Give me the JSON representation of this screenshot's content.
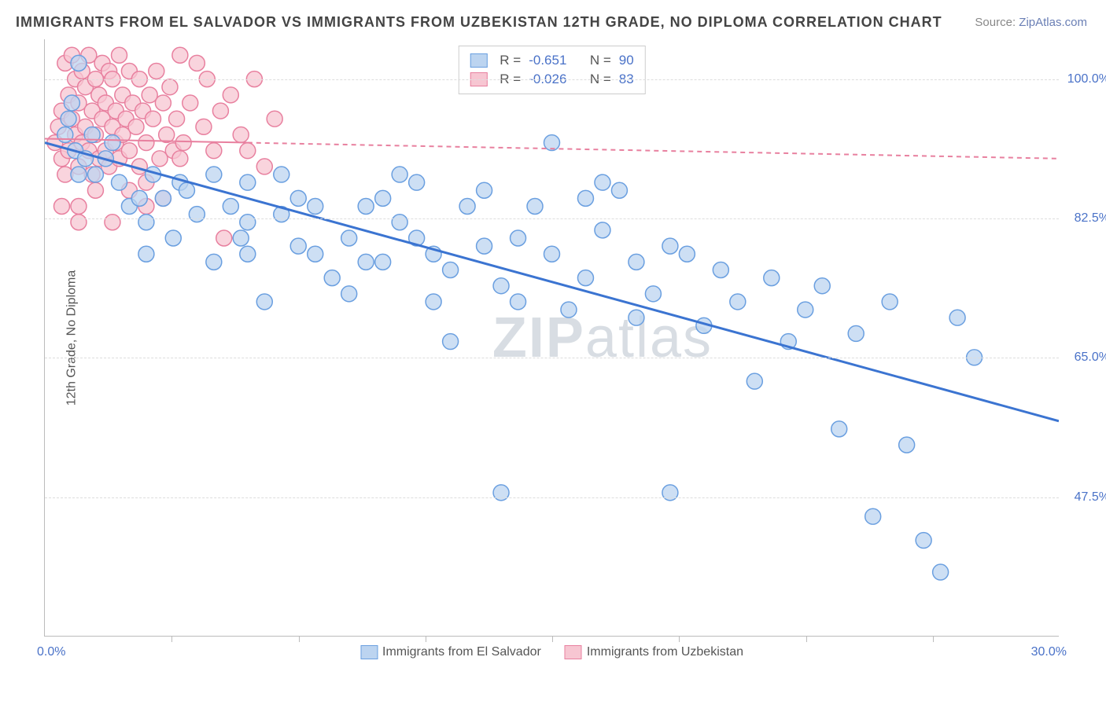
{
  "title": "IMMIGRANTS FROM EL SALVADOR VS IMMIGRANTS FROM UZBEKISTAN 12TH GRADE, NO DIPLOMA CORRELATION CHART",
  "source_label": "Source: ",
  "source_link": "ZipAtlas.com",
  "ylabel": "12th Grade, No Diploma",
  "watermark_bold": "ZIP",
  "watermark_rest": "atlas",
  "chart": {
    "type": "scatter",
    "xlim": [
      0,
      30
    ],
    "ylim": [
      30,
      105
    ],
    "x_axis_labels": {
      "min": "0.0%",
      "max": "30.0%"
    },
    "y_ticks": [
      {
        "v": 47.5,
        "label": "47.5%"
      },
      {
        "v": 65.0,
        "label": "65.0%"
      },
      {
        "v": 82.5,
        "label": "82.5%"
      },
      {
        "v": 100.0,
        "label": "100.0%"
      }
    ],
    "x_tick_positions": [
      3.75,
      7.5,
      11.25,
      15,
      18.75,
      22.5,
      26.25
    ],
    "background_color": "#ffffff",
    "grid_color": "#dddddd",
    "series": [
      {
        "name": "Immigrants from El Salvador",
        "color_fill": "#bcd4f0",
        "color_stroke": "#6a9fe0",
        "marker_radius": 10,
        "trend": {
          "x1": 0,
          "y1": 92,
          "x2": 30,
          "y2": 57,
          "color": "#3b74d1",
          "width": 3,
          "dash": "none"
        },
        "R": "-0.651",
        "N": "90",
        "points": [
          [
            1.0,
            102
          ],
          [
            0.8,
            97
          ],
          [
            0.6,
            93
          ],
          [
            0.9,
            91
          ],
          [
            1.2,
            90
          ],
          [
            1.0,
            88
          ],
          [
            1.4,
            93
          ],
          [
            0.7,
            95
          ],
          [
            1.5,
            88
          ],
          [
            1.8,
            90
          ],
          [
            2.0,
            92
          ],
          [
            2.5,
            84
          ],
          [
            2.2,
            87
          ],
          [
            2.8,
            85
          ],
          [
            3.0,
            82
          ],
          [
            3.2,
            88
          ],
          [
            3.5,
            85
          ],
          [
            3.0,
            78
          ],
          [
            3.8,
            80
          ],
          [
            4.0,
            87
          ],
          [
            4.5,
            83
          ],
          [
            4.2,
            86
          ],
          [
            5.0,
            88
          ],
          [
            5.5,
            84
          ],
          [
            5.0,
            77
          ],
          [
            5.8,
            80
          ],
          [
            6.0,
            87
          ],
          [
            6.0,
            78
          ],
          [
            6.5,
            72
          ],
          [
            7.0,
            88
          ],
          [
            7.0,
            83
          ],
          [
            7.5,
            79
          ],
          [
            8.0,
            84
          ],
          [
            8.5,
            75
          ],
          [
            9.0,
            80
          ],
          [
            9.0,
            73
          ],
          [
            9.5,
            77
          ],
          [
            10.0,
            85
          ],
          [
            10.5,
            82
          ],
          [
            10.5,
            88
          ],
          [
            11.0,
            87
          ],
          [
            11.5,
            72
          ],
          [
            11.5,
            78
          ],
          [
            12.0,
            76
          ],
          [
            12.0,
            67
          ],
          [
            12.5,
            84
          ],
          [
            13.0,
            86
          ],
          [
            13.5,
            74
          ],
          [
            13.5,
            48
          ],
          [
            14.0,
            80
          ],
          [
            14.0,
            72
          ],
          [
            14.5,
            84
          ],
          [
            15.0,
            78
          ],
          [
            15.0,
            92
          ],
          [
            15.5,
            71
          ],
          [
            16.0,
            75
          ],
          [
            16.0,
            85
          ],
          [
            16.5,
            81
          ],
          [
            17.0,
            86
          ],
          [
            17.5,
            77
          ],
          [
            17.5,
            70
          ],
          [
            18.0,
            73
          ],
          [
            18.5,
            79
          ],
          [
            18.5,
            48
          ],
          [
            19.0,
            78
          ],
          [
            19.5,
            69
          ],
          [
            20.0,
            76
          ],
          [
            20.5,
            72
          ],
          [
            21.0,
            62
          ],
          [
            21.5,
            75
          ],
          [
            22.0,
            67
          ],
          [
            22.5,
            71
          ],
          [
            23.0,
            74
          ],
          [
            23.5,
            56
          ],
          [
            24.0,
            68
          ],
          [
            24.5,
            45
          ],
          [
            25.0,
            72
          ],
          [
            25.5,
            54
          ],
          [
            26.0,
            42
          ],
          [
            26.5,
            38
          ],
          [
            27.0,
            70
          ],
          [
            27.5,
            65
          ],
          [
            6.0,
            82
          ],
          [
            7.5,
            85
          ],
          [
            8.0,
            78
          ],
          [
            9.5,
            84
          ],
          [
            10.0,
            77
          ],
          [
            11.0,
            80
          ],
          [
            13.0,
            79
          ],
          [
            16.5,
            87
          ]
        ]
      },
      {
        "name": "Immigrants from Uzbekistan",
        "color_fill": "#f7c6d2",
        "color_stroke": "#e8809f",
        "marker_radius": 10,
        "trend": {
          "x1": 0,
          "y1": 92.5,
          "x2": 30,
          "y2": 90,
          "color": "#e8809f",
          "width": 2,
          "dash": "6,5",
          "solid_until": 6
        },
        "R": "-0.026",
        "N": "83",
        "points": [
          [
            0.3,
            92
          ],
          [
            0.4,
            94
          ],
          [
            0.5,
            96
          ],
          [
            0.5,
            90
          ],
          [
            0.6,
            102
          ],
          [
            0.6,
            88
          ],
          [
            0.7,
            98
          ],
          [
            0.7,
            91
          ],
          [
            0.8,
            103
          ],
          [
            0.8,
            95
          ],
          [
            0.9,
            100
          ],
          [
            0.9,
            93
          ],
          [
            1.0,
            97
          ],
          [
            1.0,
            89
          ],
          [
            1.0,
            82
          ],
          [
            1.1,
            101
          ],
          [
            1.1,
            92
          ],
          [
            1.2,
            94
          ],
          [
            1.2,
            99
          ],
          [
            1.3,
            91
          ],
          [
            1.3,
            103
          ],
          [
            1.4,
            96
          ],
          [
            1.4,
            88
          ],
          [
            1.5,
            100
          ],
          [
            1.5,
            93
          ],
          [
            1.6,
            98
          ],
          [
            1.6,
            90
          ],
          [
            1.7,
            102
          ],
          [
            1.7,
            95
          ],
          [
            1.8,
            91
          ],
          [
            1.8,
            97
          ],
          [
            1.9,
            101
          ],
          [
            1.9,
            89
          ],
          [
            2.0,
            94
          ],
          [
            2.0,
            100
          ],
          [
            2.1,
            92
          ],
          [
            2.1,
            96
          ],
          [
            2.2,
            103
          ],
          [
            2.2,
            90
          ],
          [
            2.3,
            98
          ],
          [
            2.3,
            93
          ],
          [
            2.4,
            95
          ],
          [
            2.5,
            101
          ],
          [
            2.5,
            91
          ],
          [
            2.6,
            97
          ],
          [
            2.7,
            94
          ],
          [
            2.8,
            100
          ],
          [
            2.8,
            89
          ],
          [
            2.9,
            96
          ],
          [
            3.0,
            92
          ],
          [
            3.0,
            84
          ],
          [
            3.1,
            98
          ],
          [
            3.2,
            95
          ],
          [
            3.3,
            101
          ],
          [
            3.4,
            90
          ],
          [
            3.5,
            97
          ],
          [
            3.6,
            93
          ],
          [
            3.7,
            99
          ],
          [
            3.8,
            91
          ],
          [
            3.9,
            95
          ],
          [
            4.0,
            103
          ],
          [
            4.1,
            92
          ],
          [
            4.3,
            97
          ],
          [
            4.5,
            102
          ],
          [
            4.7,
            94
          ],
          [
            4.8,
            100
          ],
          [
            5.0,
            91
          ],
          [
            5.2,
            96
          ],
          [
            5.3,
            80
          ],
          [
            5.5,
            98
          ],
          [
            5.8,
            93
          ],
          [
            6.0,
            91
          ],
          [
            6.2,
            100
          ],
          [
            6.5,
            89
          ],
          [
            6.8,
            95
          ],
          [
            0.5,
            84
          ],
          [
            1.0,
            84
          ],
          [
            1.5,
            86
          ],
          [
            2.0,
            82
          ],
          [
            2.5,
            86
          ],
          [
            3.0,
            87
          ],
          [
            3.5,
            85
          ],
          [
            4.0,
            90
          ]
        ]
      }
    ],
    "legend_bottom": [
      {
        "label": "Immigrants from El Salvador",
        "fill": "#bcd4f0",
        "stroke": "#6a9fe0"
      },
      {
        "label": "Immigrants from Uzbekistan",
        "fill": "#f7c6d2",
        "stroke": "#e8809f"
      }
    ]
  }
}
